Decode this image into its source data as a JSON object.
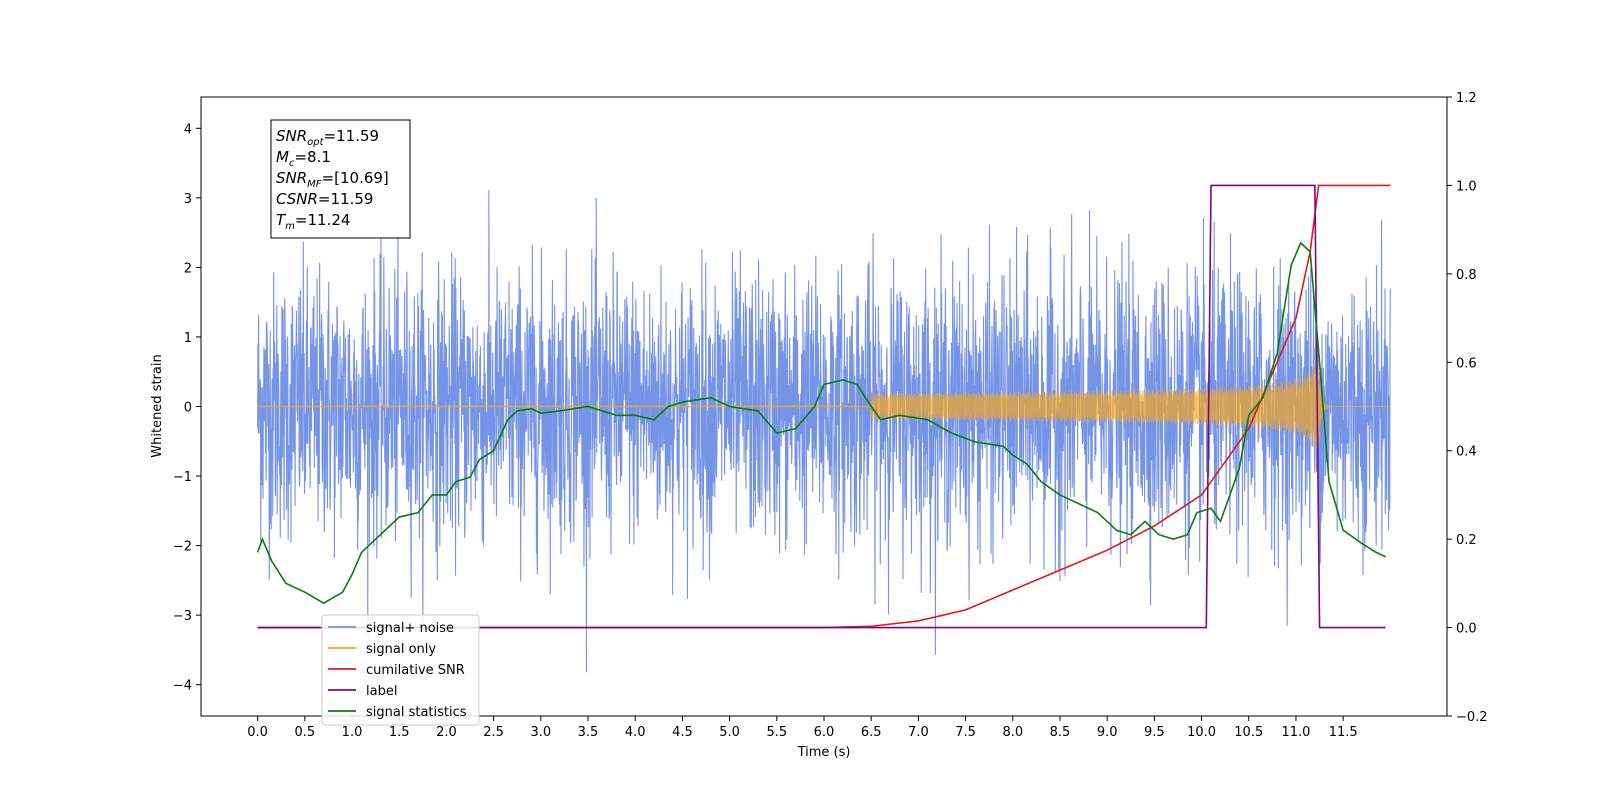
{
  "chart_data": {
    "type": "line",
    "xlabel": "Time (s)",
    "ylabel": "Whitened strain",
    "xlim": [
      -0.6,
      12.6
    ],
    "ylim": [
      -4.45,
      4.45
    ],
    "y2lim": [
      -0.2,
      1.2
    ],
    "x_ticks": [
      "0.0",
      "0.5",
      "1.0",
      "1.5",
      "2.0",
      "2.5",
      "3.0",
      "3.5",
      "4.0",
      "4.5",
      "5.0",
      "5.5",
      "6.0",
      "6.5",
      "7.0",
      "7.5",
      "8.0",
      "8.5",
      "9.0",
      "9.5",
      "10.0",
      "10.5",
      "11.0",
      "11.5"
    ],
    "y_ticks": [
      "4",
      "3",
      "2",
      "1",
      "0",
      "−1",
      "−2",
      "−3",
      "−4"
    ],
    "y2_ticks": [
      "1.2",
      "1.0",
      "0.8",
      "0.6",
      "0.4",
      "0.2",
      "0.0",
      "−0.2"
    ],
    "info_box": [
      {
        "name": "SNR",
        "sub": "opt",
        "value": "=11.59"
      },
      {
        "name": "M",
        "sub": "c",
        "value": "=8.1"
      },
      {
        "name": "SNR",
        "sub": "MF",
        "value": "=[10.69]"
      },
      {
        "name": "CSNR",
        "sub": "",
        "value": "=11.59"
      },
      {
        "name": "T",
        "sub": "m",
        "value": "=11.24"
      }
    ],
    "series": [
      {
        "name": "signal+ noise",
        "color": "#6f8ee6",
        "axis": "left",
        "kind": "noise",
        "t_start": 0.0,
        "t_end": 12.0,
        "sigma": 0.95
      },
      {
        "name": "signal only",
        "color": "#f5a623",
        "axis": "left",
        "kind": "chirp",
        "t_start": 0.0,
        "t_end": 12.0,
        "merger_time": 11.24,
        "peak_amplitude": 0.75
      },
      {
        "name": "cumilative SNR",
        "color": "#e0191c",
        "axis": "right",
        "kind": "line",
        "points": [
          [
            0.0,
            0.0
          ],
          [
            6.0,
            0.0
          ],
          [
            6.5,
            0.003
          ],
          [
            7.0,
            0.015
          ],
          [
            7.5,
            0.04
          ],
          [
            8.0,
            0.085
          ],
          [
            8.5,
            0.13
          ],
          [
            9.0,
            0.175
          ],
          [
            9.5,
            0.23
          ],
          [
            10.0,
            0.3
          ],
          [
            10.5,
            0.45
          ],
          [
            11.0,
            0.7
          ],
          [
            11.15,
            0.85
          ],
          [
            11.24,
            1.0
          ],
          [
            12.0,
            1.0
          ]
        ]
      },
      {
        "name": "label",
        "color": "#7a0a7a",
        "axis": "right",
        "kind": "line",
        "points": [
          [
            0.0,
            0.0
          ],
          [
            10.05,
            0.0
          ],
          [
            10.1,
            1.0
          ],
          [
            11.2,
            1.0
          ],
          [
            11.25,
            0.0
          ],
          [
            11.95,
            0.0
          ]
        ]
      },
      {
        "name": "signal statistics",
        "color": "#0a7d0a",
        "axis": "right",
        "kind": "line",
        "points": [
          [
            0.0,
            0.17
          ],
          [
            0.05,
            0.2
          ],
          [
            0.15,
            0.15
          ],
          [
            0.3,
            0.1
          ],
          [
            0.5,
            0.08
          ],
          [
            0.7,
            0.055
          ],
          [
            0.9,
            0.08
          ],
          [
            1.0,
            0.12
          ],
          [
            1.1,
            0.17
          ],
          [
            1.3,
            0.21
          ],
          [
            1.5,
            0.25
          ],
          [
            1.7,
            0.26
          ],
          [
            1.85,
            0.3
          ],
          [
            2.0,
            0.3
          ],
          [
            2.1,
            0.33
          ],
          [
            2.25,
            0.34
          ],
          [
            2.35,
            0.38
          ],
          [
            2.5,
            0.4
          ],
          [
            2.65,
            0.47
          ],
          [
            2.75,
            0.49
          ],
          [
            2.9,
            0.495
          ],
          [
            3.0,
            0.485
          ],
          [
            3.2,
            0.49
          ],
          [
            3.5,
            0.5
          ],
          [
            3.8,
            0.48
          ],
          [
            4.0,
            0.48
          ],
          [
            4.2,
            0.47
          ],
          [
            4.35,
            0.5
          ],
          [
            4.5,
            0.51
          ],
          [
            4.8,
            0.52
          ],
          [
            5.0,
            0.5
          ],
          [
            5.3,
            0.49
          ],
          [
            5.5,
            0.44
          ],
          [
            5.7,
            0.45
          ],
          [
            5.9,
            0.5
          ],
          [
            6.0,
            0.55
          ],
          [
            6.2,
            0.56
          ],
          [
            6.35,
            0.55
          ],
          [
            6.5,
            0.5
          ],
          [
            6.6,
            0.47
          ],
          [
            6.8,
            0.48
          ],
          [
            7.1,
            0.47
          ],
          [
            7.35,
            0.44
          ],
          [
            7.6,
            0.42
          ],
          [
            7.9,
            0.41
          ],
          [
            8.0,
            0.39
          ],
          [
            8.15,
            0.37
          ],
          [
            8.3,
            0.33
          ],
          [
            8.5,
            0.3
          ],
          [
            8.7,
            0.28
          ],
          [
            8.9,
            0.26
          ],
          [
            9.1,
            0.22
          ],
          [
            9.25,
            0.21
          ],
          [
            9.4,
            0.24
          ],
          [
            9.55,
            0.21
          ],
          [
            9.7,
            0.2
          ],
          [
            9.85,
            0.21
          ],
          [
            9.95,
            0.26
          ],
          [
            10.1,
            0.27
          ],
          [
            10.2,
            0.24
          ],
          [
            10.3,
            0.3
          ],
          [
            10.4,
            0.36
          ],
          [
            10.5,
            0.48
          ],
          [
            10.65,
            0.52
          ],
          [
            10.8,
            0.62
          ],
          [
            10.95,
            0.82
          ],
          [
            11.05,
            0.87
          ],
          [
            11.15,
            0.85
          ],
          [
            11.25,
            0.6
          ],
          [
            11.35,
            0.33
          ],
          [
            11.5,
            0.22
          ],
          [
            11.7,
            0.19
          ],
          [
            11.85,
            0.17
          ],
          [
            11.95,
            0.16
          ]
        ]
      }
    ],
    "legend_placement": "lower-left"
  }
}
